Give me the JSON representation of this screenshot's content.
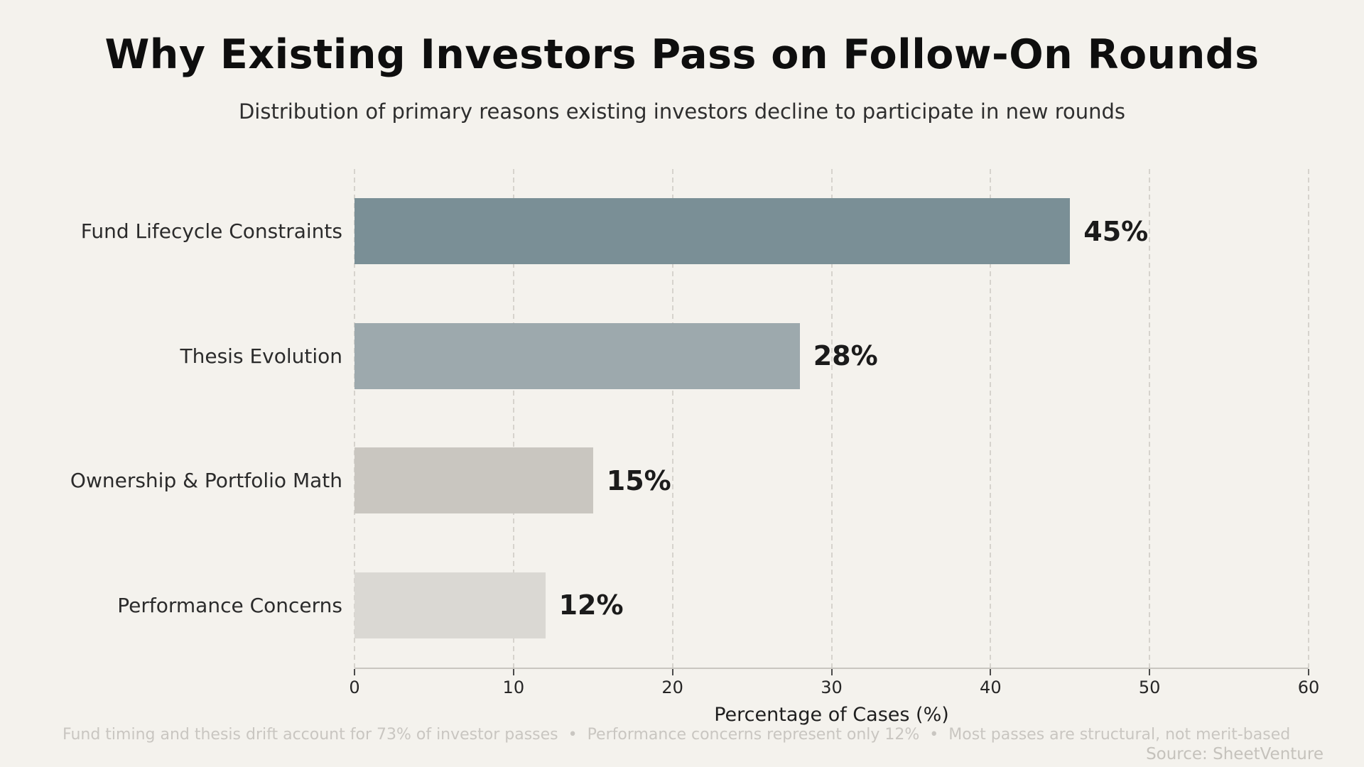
{
  "header": {
    "title": "Why Existing Investors Pass on Follow-On Rounds",
    "subtitle": "Distribution of primary reasons existing investors decline to participate in new rounds"
  },
  "chart_data": {
    "type": "bar",
    "orientation": "horizontal",
    "title": "Why Existing Investors Pass on Follow-On Rounds",
    "subtitle": "Distribution of primary reasons existing investors decline to participate in new rounds",
    "categories": [
      "Fund Lifecycle Constraints",
      "Thesis Evolution",
      "Ownership & Portfolio Math",
      "Performance Concerns"
    ],
    "values": [
      45,
      28,
      15,
      12
    ],
    "value_labels": [
      "45%",
      "28%",
      "15%",
      "12%"
    ],
    "bar_colors": [
      "#7A8F96",
      "#9DA9AD",
      "#C9C6C0",
      "#DAD8D3"
    ],
    "xlabel": "Percentage of Cases (%)",
    "ylabel": "",
    "xlim": [
      0,
      60
    ],
    "xticks": [
      0,
      10,
      20,
      30,
      40,
      50,
      60
    ],
    "grid": "vertical-dashed",
    "legend": "none"
  },
  "footer": {
    "note": "Fund timing and thesis drift account for 73% of investor passes  •  Performance concerns represent only 12%  •  Most passes are structural, not merit-based",
    "source": "Source: SheetVenture"
  },
  "colors": {
    "background": "#F4F2ED",
    "grid": "#d6d3cd",
    "axis_line": "#c9c6c0",
    "title_text": "#0e0e0e",
    "body_text": "#2b2b2b",
    "muted_text": "#c9c6c1"
  }
}
